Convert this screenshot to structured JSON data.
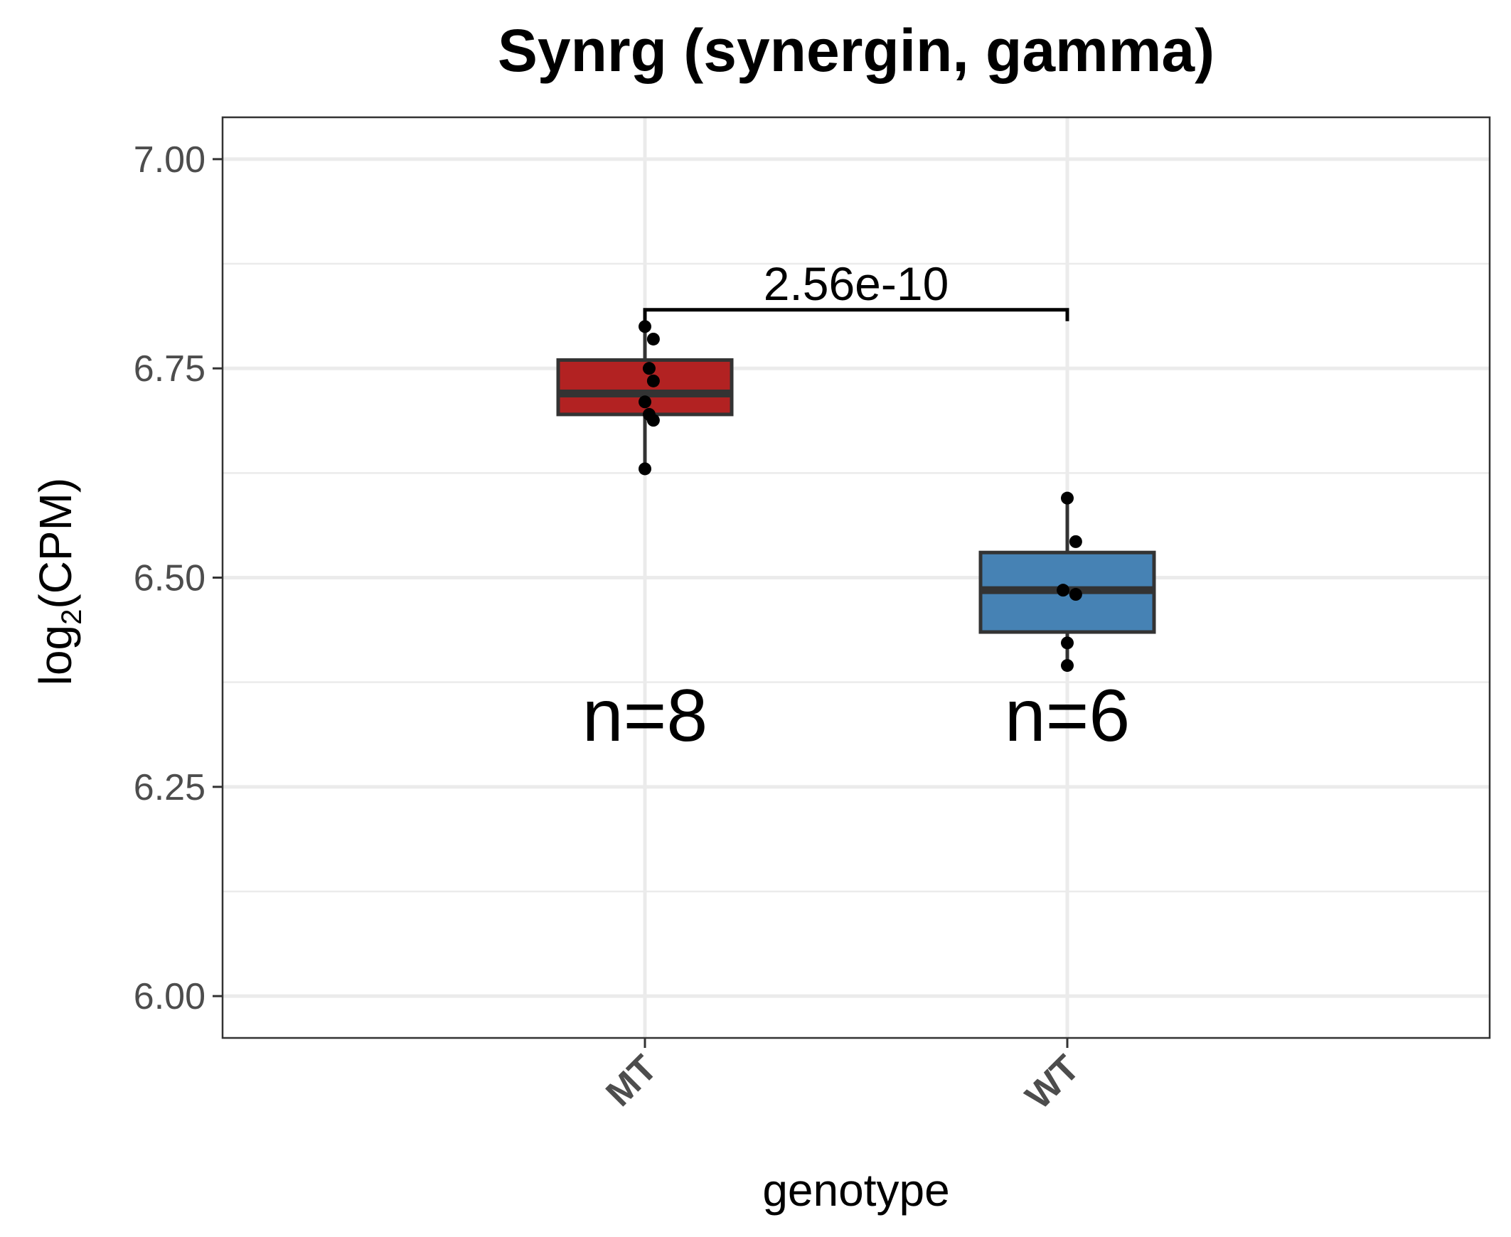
{
  "chart_data": {
    "type": "box",
    "title": "Synrg (synergin, gamma)",
    "xlabel": "genotype",
    "ylabel_main": "log",
    "ylabel_sub": "2",
    "ylabel_tail": "(CPM)",
    "ylim": [
      5.95,
      7.05
    ],
    "yticks": [
      "6.00",
      "6.25",
      "6.50",
      "6.75",
      "7.00"
    ],
    "ytick_values": [
      6.0,
      6.25,
      6.5,
      6.75,
      7.0
    ],
    "minor_ytick_values": [
      6.125,
      6.375,
      6.625,
      6.875
    ],
    "grid": true,
    "categories": [
      "MT",
      "WT"
    ],
    "groups": [
      {
        "name": "MT",
        "color": "#b22222",
        "n_label": "n=8",
        "q1": 6.695,
        "median": 6.72,
        "q3": 6.76,
        "whisker_low": 6.63,
        "whisker_high": 6.8,
        "points": [
          {
            "dx": 0.0,
            "y": 6.8
          },
          {
            "dx": 0.02,
            "y": 6.785
          },
          {
            "dx": 0.01,
            "y": 6.75
          },
          {
            "dx": 0.02,
            "y": 6.735
          },
          {
            "dx": 0.0,
            "y": 6.71
          },
          {
            "dx": 0.01,
            "y": 6.695
          },
          {
            "dx": 0.02,
            "y": 6.688
          },
          {
            "dx": 0.0,
            "y": 6.63
          }
        ]
      },
      {
        "name": "WT",
        "color": "#4682b4",
        "n_label": "n=6",
        "q1": 6.435,
        "median": 6.485,
        "q3": 6.53,
        "whisker_low": 6.395,
        "whisker_high": 6.595,
        "points": [
          {
            "dx": 0.0,
            "y": 6.595
          },
          {
            "dx": 0.02,
            "y": 6.543
          },
          {
            "dx": -0.01,
            "y": 6.485
          },
          {
            "dx": 0.02,
            "y": 6.48
          },
          {
            "dx": 0.0,
            "y": 6.422
          },
          {
            "dx": 0.0,
            "y": 6.395
          }
        ]
      }
    ],
    "comparison": {
      "from": "MT",
      "to": "WT",
      "label": "2.56e-10",
      "y": 6.82
    }
  }
}
